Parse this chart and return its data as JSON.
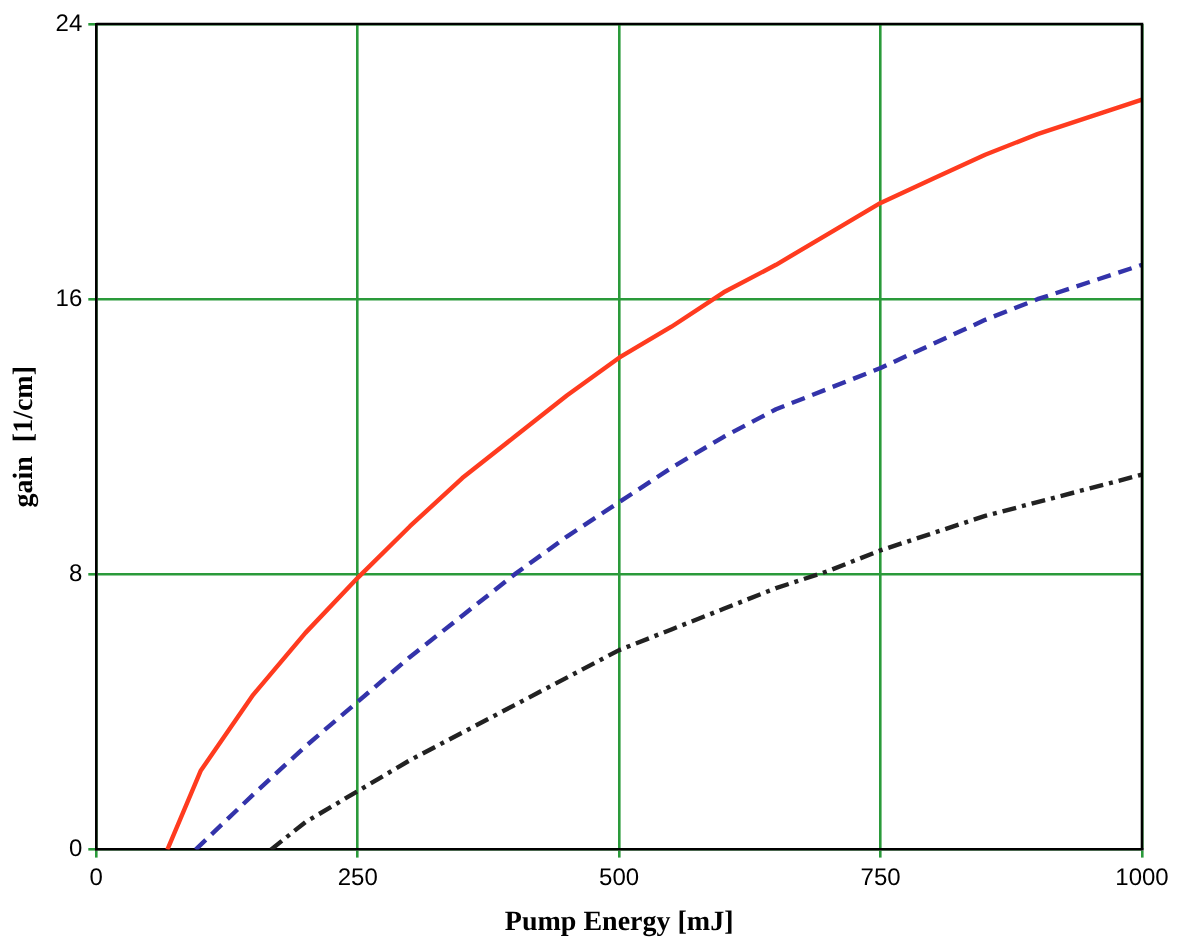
{
  "chart_data": {
    "type": "line",
    "xlabel": "Pump Energy [mJ]",
    "ylabel": "gain  [1/cm]",
    "xlim": [
      0,
      1000
    ],
    "xticks": [
      0,
      250,
      500,
      750,
      1000
    ],
    "ylim": [
      0,
      24
    ],
    "yticks": [
      0,
      8,
      16,
      24
    ],
    "grid": true,
    "legend": false,
    "marker": "none",
    "series": [
      {
        "color": "#ff3b1f",
        "line_style": "solid",
        "x": [
          68,
          100,
          150,
          200,
          250,
          300,
          350,
          400,
          450,
          500,
          550,
          600,
          650,
          700,
          750,
          800,
          850,
          900,
          950,
          1000
        ],
        "values": [
          0,
          2.3,
          4.5,
          6.3,
          7.9,
          9.4,
          10.8,
          12.0,
          13.2,
          14.3,
          15.2,
          16.2,
          17.0,
          17.9,
          18.8,
          19.5,
          20.2,
          20.8,
          21.3,
          21.8
        ]
      },
      {
        "color": "#3333aa",
        "line_style": "dashed",
        "x": [
          95,
          150,
          200,
          250,
          300,
          350,
          400,
          450,
          500,
          550,
          600,
          650,
          700,
          750,
          800,
          850,
          900,
          950,
          1000
        ],
        "values": [
          0,
          1.6,
          3.0,
          4.3,
          5.6,
          6.8,
          8.0,
          9.1,
          10.1,
          11.1,
          12.0,
          12.8,
          13.4,
          14.0,
          14.7,
          15.4,
          16.0,
          16.5,
          17.0
        ]
      },
      {
        "color": "#222222",
        "line_style": "dotted",
        "x": [
          167,
          200,
          250,
          300,
          350,
          400,
          450,
          500,
          550,
          600,
          650,
          700,
          750,
          800,
          850,
          900,
          950,
          1000
        ],
        "values": [
          0,
          0.8,
          1.7,
          2.6,
          3.4,
          4.2,
          5.0,
          5.8,
          6.4,
          7.0,
          7.6,
          8.1,
          8.7,
          9.2,
          9.7,
          10.1,
          10.5,
          10.9
        ]
      }
    ]
  }
}
